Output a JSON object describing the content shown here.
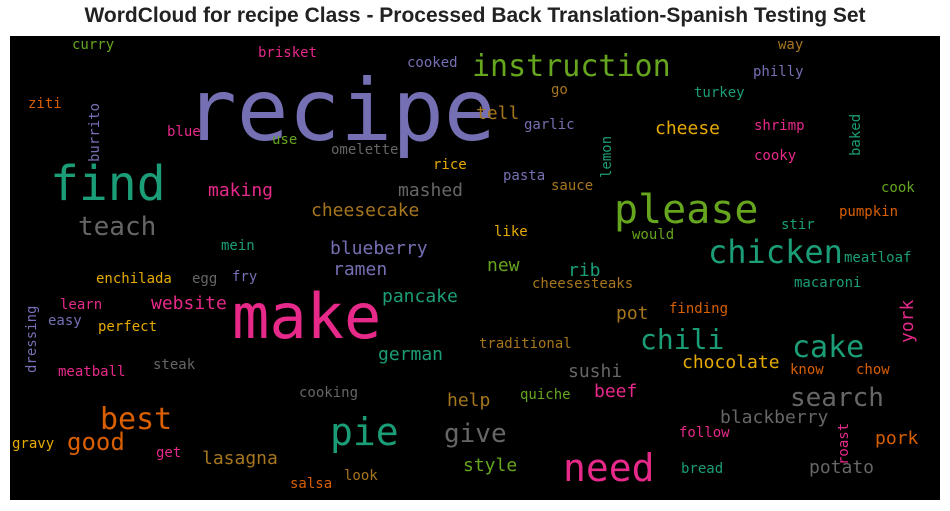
{
  "title": "WordCloud for recipe Class - Processed Back Translation-Spanish Testing Set",
  "colors": {
    "background": "#000000",
    "palette": [
      "#1b9e77",
      "#d95f02",
      "#7570b3",
      "#e7298a",
      "#66a61e",
      "#e6ab02",
      "#a6761d",
      "#666666"
    ]
  },
  "chart_data": {
    "type": "wordcloud",
    "title": "WordCloud for recipe Class - Processed Back Translation-Spanish Testing Set",
    "words": [
      {
        "text": "recipe",
        "color": "#7570b3"
      },
      {
        "text": "make",
        "color": "#e7298a"
      },
      {
        "text": "find",
        "color": "#1b9e77"
      },
      {
        "text": "please",
        "color": "#66a61e"
      },
      {
        "text": "instruction",
        "color": "#66a61e"
      },
      {
        "text": "need",
        "color": "#e7298a"
      },
      {
        "text": "pie",
        "color": "#1b9e77"
      },
      {
        "text": "chicken",
        "color": "#1b9e77"
      },
      {
        "text": "best",
        "color": "#d95f02"
      },
      {
        "text": "cake",
        "color": "#1b9e77"
      },
      {
        "text": "chili",
        "color": "#1b9e77"
      },
      {
        "text": "teach",
        "color": "#666666"
      },
      {
        "text": "search",
        "color": "#666666"
      },
      {
        "text": "good",
        "color": "#d95f02"
      },
      {
        "text": "give",
        "color": "#666666"
      },
      {
        "text": "cheesecake",
        "color": "#a6761d"
      },
      {
        "text": "blueberry",
        "color": "#7570b3"
      },
      {
        "text": "blackberry",
        "color": "#666666"
      },
      {
        "text": "making",
        "color": "#e7298a"
      },
      {
        "text": "mashed",
        "color": "#666666"
      },
      {
        "text": "cheese",
        "color": "#e6ab02"
      },
      {
        "text": "chocolate",
        "color": "#e6ab02"
      },
      {
        "text": "ramen",
        "color": "#7570b3"
      },
      {
        "text": "pancake",
        "color": "#1b9e77"
      },
      {
        "text": "website",
        "color": "#e7298a"
      },
      {
        "text": "german",
        "color": "#1b9e77"
      },
      {
        "text": "lasagna",
        "color": "#a6761d"
      },
      {
        "text": "style",
        "color": "#66a61e"
      },
      {
        "text": "pork",
        "color": "#d95f02"
      },
      {
        "text": "potato",
        "color": "#666666"
      },
      {
        "text": "sushi",
        "color": "#666666"
      },
      {
        "text": "beef",
        "color": "#e7298a"
      },
      {
        "text": "help",
        "color": "#a6761d"
      },
      {
        "text": "tell",
        "color": "#a6761d"
      },
      {
        "text": "new",
        "color": "#66a61e"
      },
      {
        "text": "rib",
        "color": "#1b9e77"
      },
      {
        "text": "pot",
        "color": "#a6761d"
      },
      {
        "text": "york",
        "color": "#e7298a"
      },
      {
        "text": "curry",
        "color": "#66a61e"
      },
      {
        "text": "brisket",
        "color": "#e7298a"
      },
      {
        "text": "cooked",
        "color": "#7570b3"
      },
      {
        "text": "way",
        "color": "#a6761d"
      },
      {
        "text": "philly",
        "color": "#7570b3"
      },
      {
        "text": "ziti",
        "color": "#d95f02"
      },
      {
        "text": "burrito",
        "color": "#7570b3"
      },
      {
        "text": "go",
        "color": "#a6761d"
      },
      {
        "text": "turkey",
        "color": "#1b9e77"
      },
      {
        "text": "garlic",
        "color": "#7570b3"
      },
      {
        "text": "blue",
        "color": "#e7298a"
      },
      {
        "text": "use",
        "color": "#66a61e"
      },
      {
        "text": "omelette",
        "color": "#666666"
      },
      {
        "text": "lemon",
        "color": "#1b9e77"
      },
      {
        "text": "shrimp",
        "color": "#e7298a"
      },
      {
        "text": "baked",
        "color": "#1b9e77"
      },
      {
        "text": "rice",
        "color": "#e6ab02"
      },
      {
        "text": "cooky",
        "color": "#e7298a"
      },
      {
        "text": "pasta",
        "color": "#7570b3"
      },
      {
        "text": "sauce",
        "color": "#a6761d"
      },
      {
        "text": "cook",
        "color": "#66a61e"
      },
      {
        "text": "pumpkin",
        "color": "#d95f02"
      },
      {
        "text": "stir",
        "color": "#1b9e77"
      },
      {
        "text": "mein",
        "color": "#1b9e77"
      },
      {
        "text": "like",
        "color": "#e6ab02"
      },
      {
        "text": "would",
        "color": "#66a61e"
      },
      {
        "text": "meatloaf",
        "color": "#1b9e77"
      },
      {
        "text": "enchilada",
        "color": "#e6ab02"
      },
      {
        "text": "egg",
        "color": "#666666"
      },
      {
        "text": "fry",
        "color": "#7570b3"
      },
      {
        "text": "cheesesteaks",
        "color": "#a6761d"
      },
      {
        "text": "macaroni",
        "color": "#1b9e77"
      },
      {
        "text": "learn",
        "color": "#e7298a"
      },
      {
        "text": "dressing",
        "color": "#7570b3"
      },
      {
        "text": "easy",
        "color": "#7570b3"
      },
      {
        "text": "perfect",
        "color": "#e6ab02"
      },
      {
        "text": "finding",
        "color": "#d95f02"
      },
      {
        "text": "traditional",
        "color": "#a6761d"
      },
      {
        "text": "meatball",
        "color": "#e7298a"
      },
      {
        "text": "steak",
        "color": "#666666"
      },
      {
        "text": "know",
        "color": "#d95f02"
      },
      {
        "text": "chow",
        "color": "#d95f02"
      },
      {
        "text": "cooking",
        "color": "#666666"
      },
      {
        "text": "quiche",
        "color": "#66a61e"
      },
      {
        "text": "roast",
        "color": "#e7298a"
      },
      {
        "text": "follow",
        "color": "#e7298a"
      },
      {
        "text": "gravy",
        "color": "#e6ab02"
      },
      {
        "text": "get",
        "color": "#e7298a"
      },
      {
        "text": "bread",
        "color": "#1b9e77"
      },
      {
        "text": "salsa",
        "color": "#d95f02"
      },
      {
        "text": "look",
        "color": "#a6761d"
      }
    ]
  }
}
